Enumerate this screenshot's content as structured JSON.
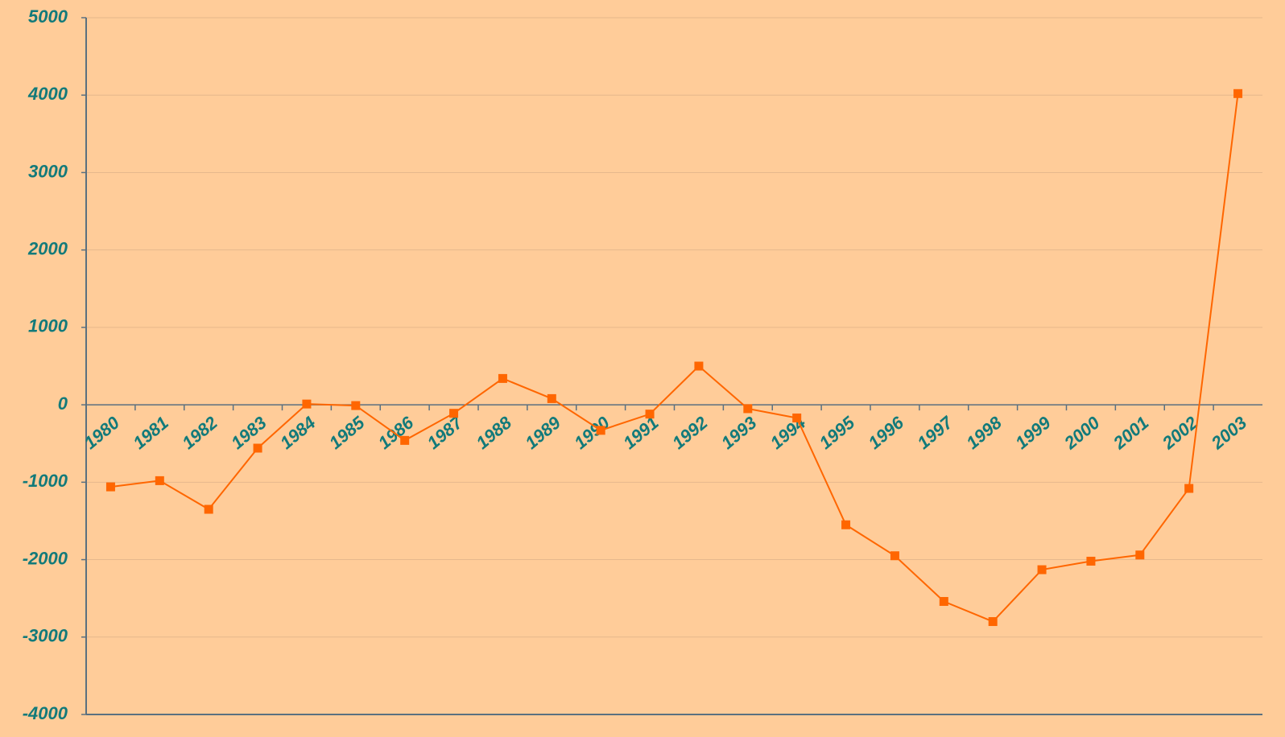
{
  "chart_data": {
    "type": "line",
    "categories": [
      "1980",
      "1981",
      "1982",
      "1983",
      "1984",
      "1985",
      "1986",
      "1987",
      "1988",
      "1989",
      "1990",
      "1991",
      "1992",
      "1993",
      "1994",
      "1995",
      "1996",
      "1997",
      "1998",
      "1999",
      "2000",
      "2001",
      "2002",
      "2003"
    ],
    "series": [
      {
        "color": "#ff6600",
        "values": [
          -1060,
          -980,
          -1350,
          -560,
          10,
          -10,
          -460,
          -110,
          340,
          80,
          -330,
          -120,
          500,
          -50,
          -170,
          -1550,
          -1950,
          -2540,
          -2800,
          -2130,
          -2020,
          -1940,
          -1080,
          4020
        ]
      }
    ],
    "ylim": [
      -4000,
      5000
    ],
    "yticks": [
      -4000,
      -3000,
      -2000,
      -1000,
      0,
      1000,
      2000,
      3000,
      4000,
      5000
    ],
    "grid": true
  }
}
